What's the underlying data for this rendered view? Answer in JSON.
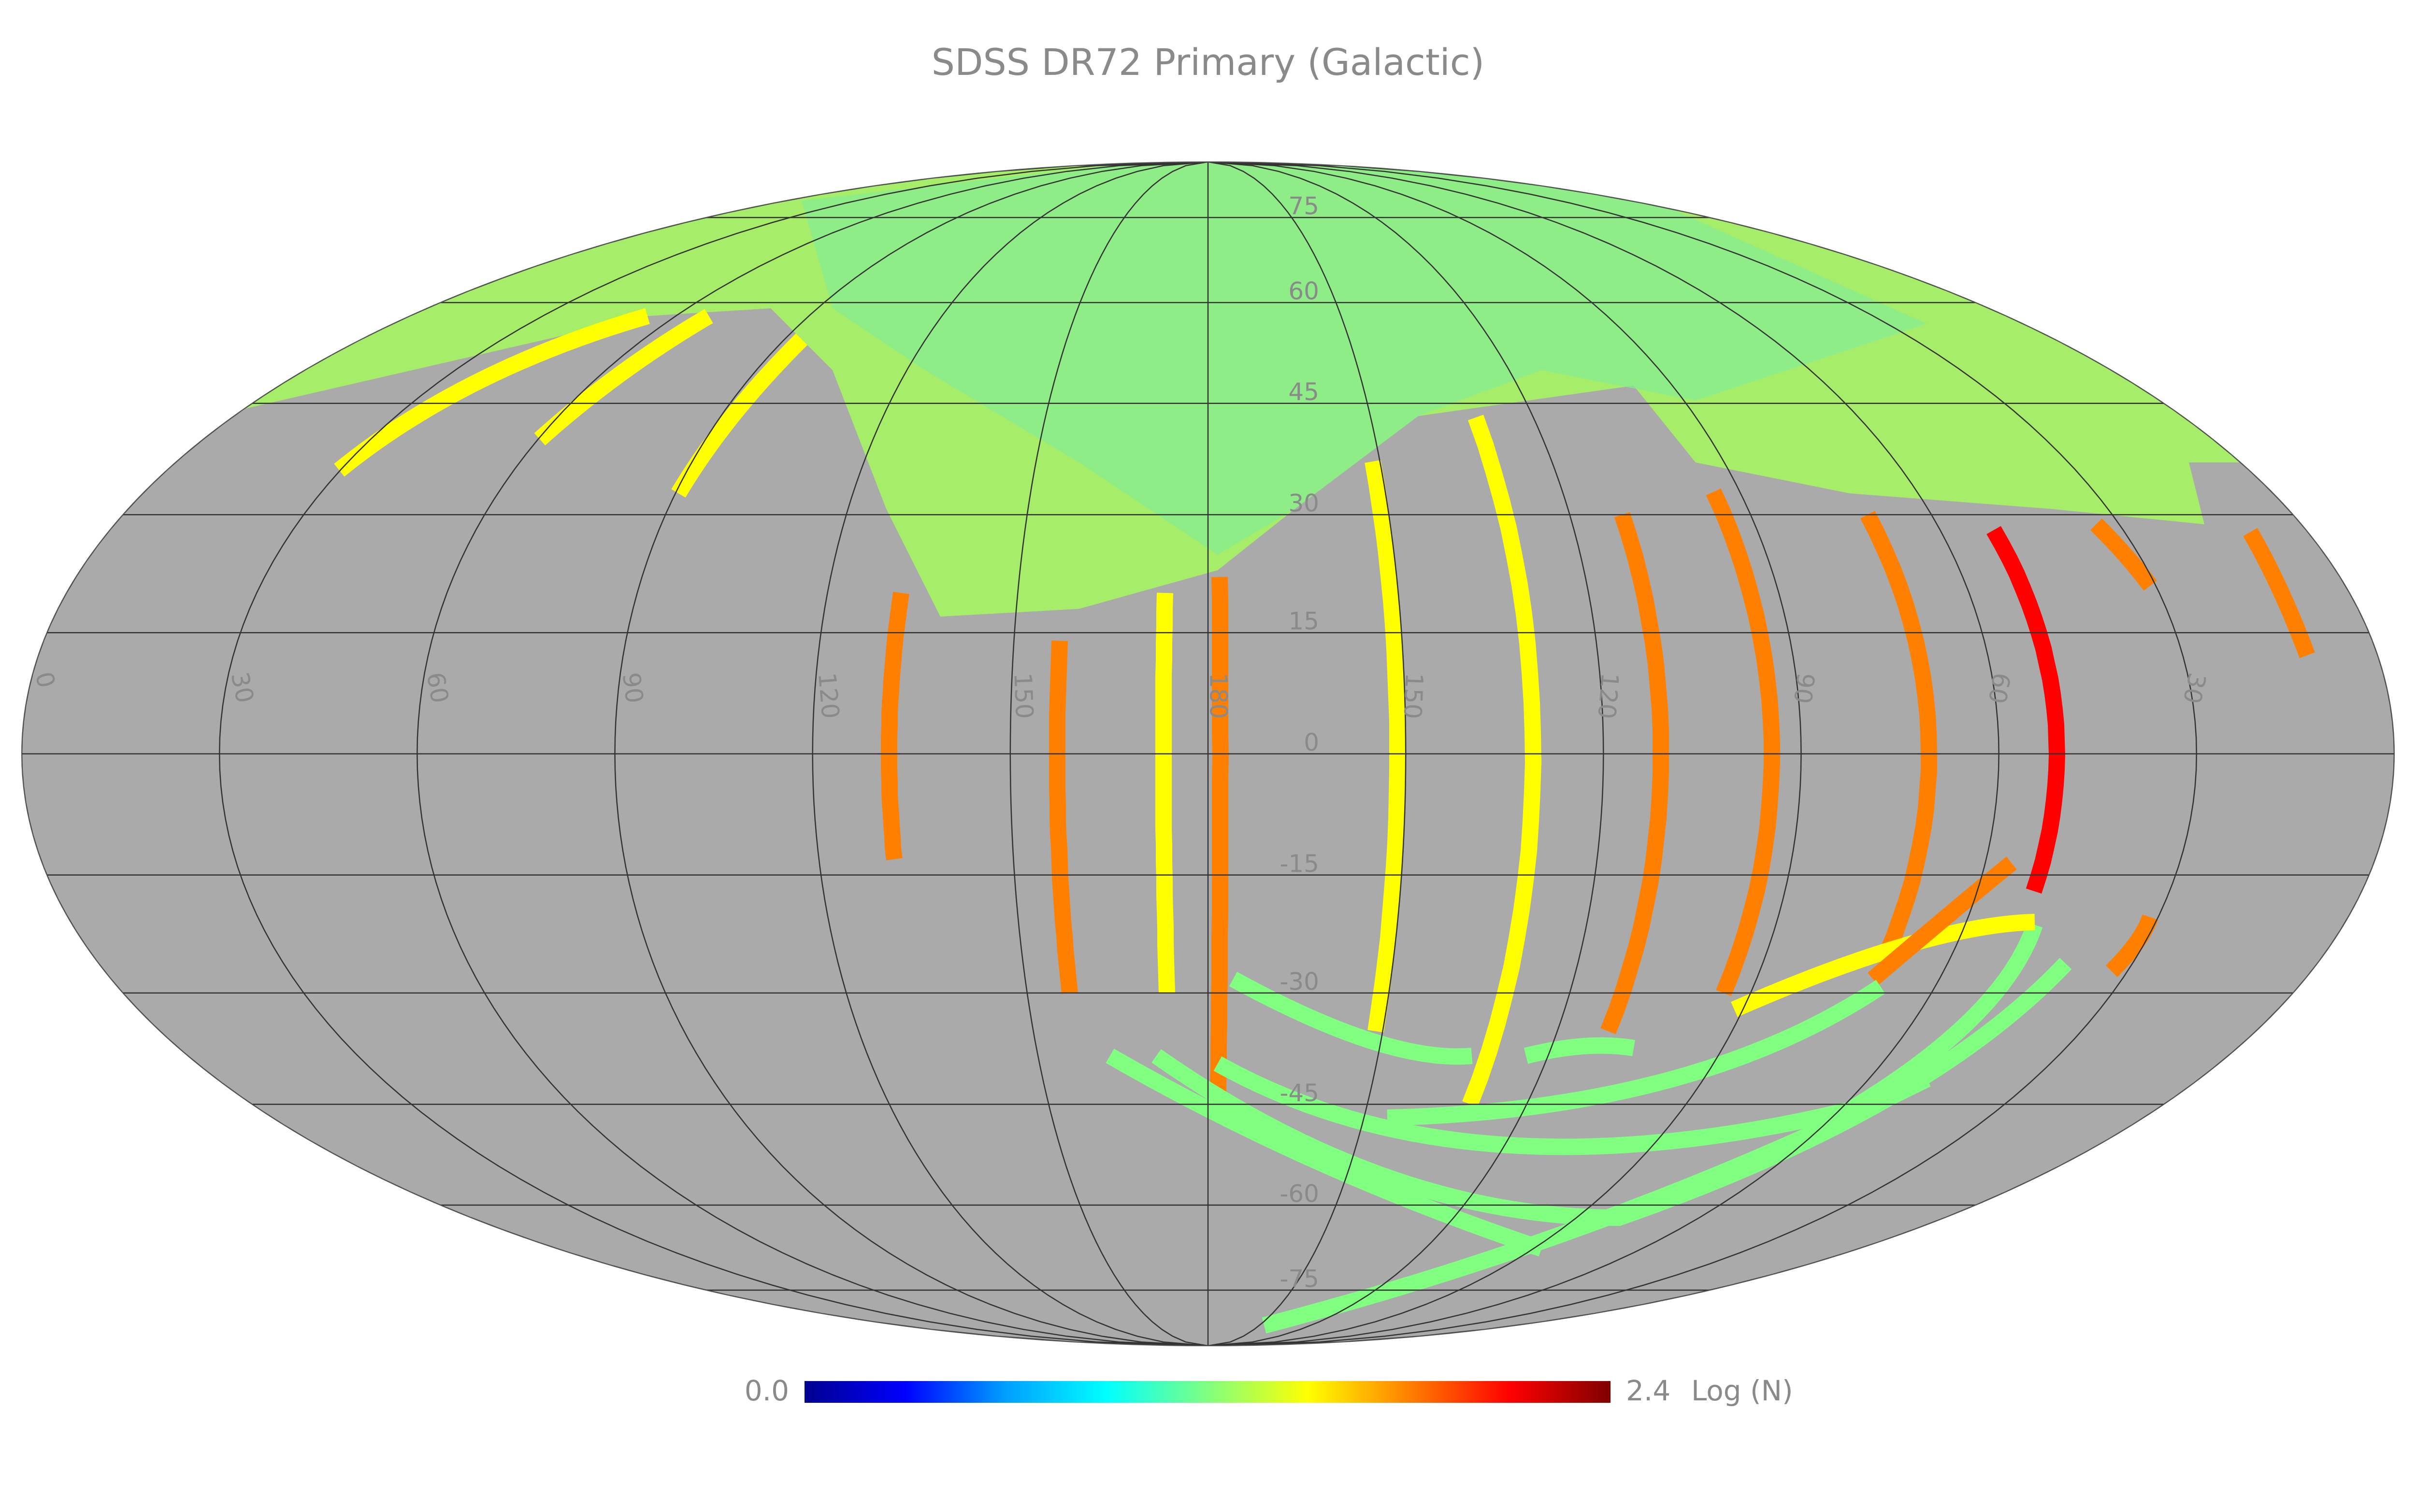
{
  "title": "SDSS DR72 Primary (Galactic)",
  "map": {
    "projection": "mollweide",
    "longitude_labels": [
      0,
      30,
      60,
      90,
      120,
      150,
      180,
      150,
      120,
      90,
      60,
      30
    ],
    "latitude_labels": [
      75,
      60,
      45,
      30,
      15,
      0,
      -15,
      -30,
      -45,
      -60,
      -75
    ],
    "background": "#aaaaaa",
    "grid_color": "#333333"
  },
  "colorbar": {
    "min": {
      "value": 0,
      "label": "0.0"
    },
    "max": 2.4,
    "unit": "Log (N)",
    "colormap": [
      "#00008f",
      "#0000ff",
      "#00a0ff",
      "#00ffff",
      "#80ff80",
      "#ffff00",
      "#ff8000",
      "#ff0000",
      "#800000"
    ]
  }
}
